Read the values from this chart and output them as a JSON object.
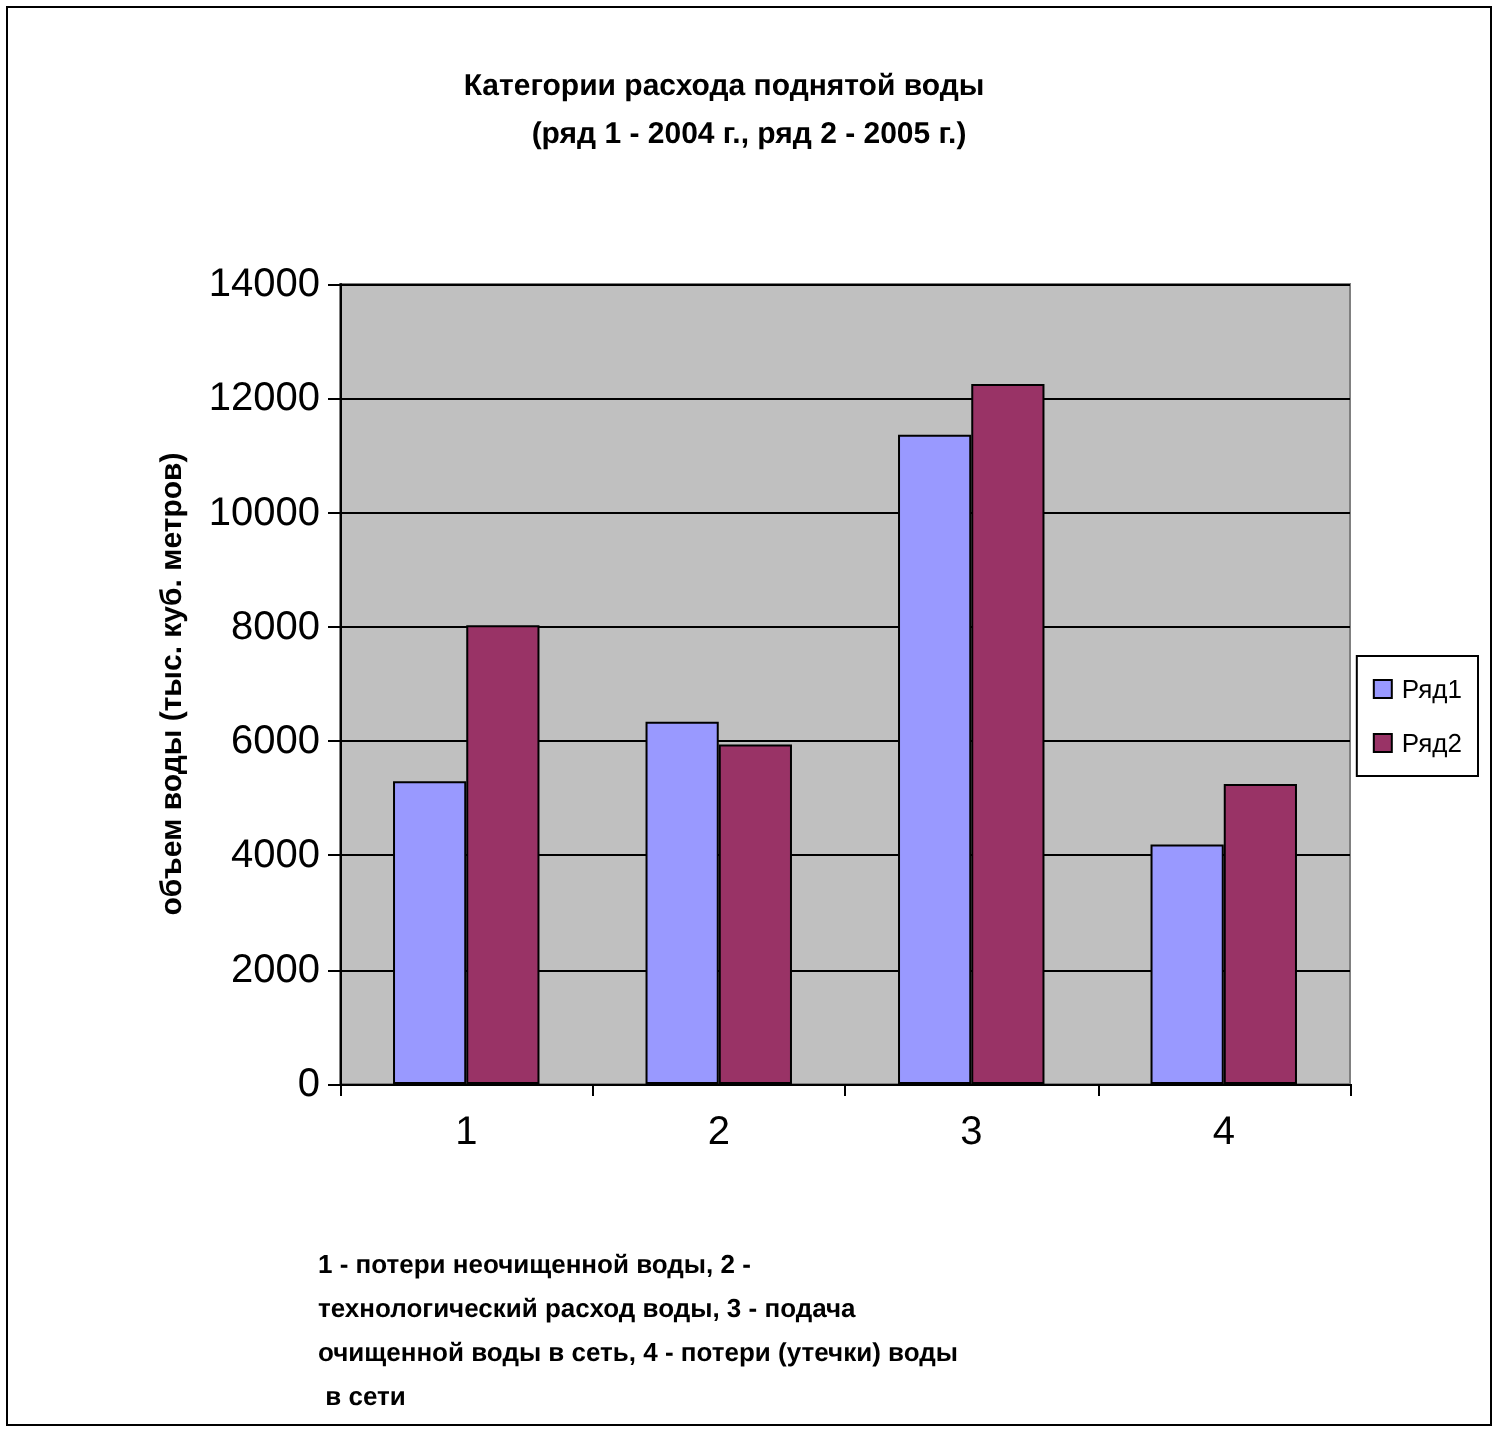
{
  "chart_data": {
    "type": "bar",
    "title": "Категории расхода поднятой воды      (ряд 1 - 2004 г., ряд 2 - 2005 г.)",
    "xlabel": "1 - потери неочищенной воды, 2 - технологический расход воды, 3 - подача очищенной воды в сеть, 4 - потери (утечки) воды в сети",
    "ylabel": "объем воды (тыс. куб. метров)",
    "categories": [
      "1",
      "2",
      "3",
      "4"
    ],
    "series": [
      {
        "name": "Ряд1",
        "color": "#9999ff",
        "values": [
          5300,
          6340,
          11360,
          4190
        ]
      },
      {
        "name": "Ряд2",
        "color": "#993366",
        "values": [
          8030,
          5940,
          12250,
          5250
        ]
      }
    ],
    "ylim": [
      0,
      14000
    ],
    "yticks": [
      0,
      2000,
      4000,
      6000,
      8000,
      10000,
      12000,
      14000
    ],
    "grid": "y",
    "legend": "right"
  }
}
